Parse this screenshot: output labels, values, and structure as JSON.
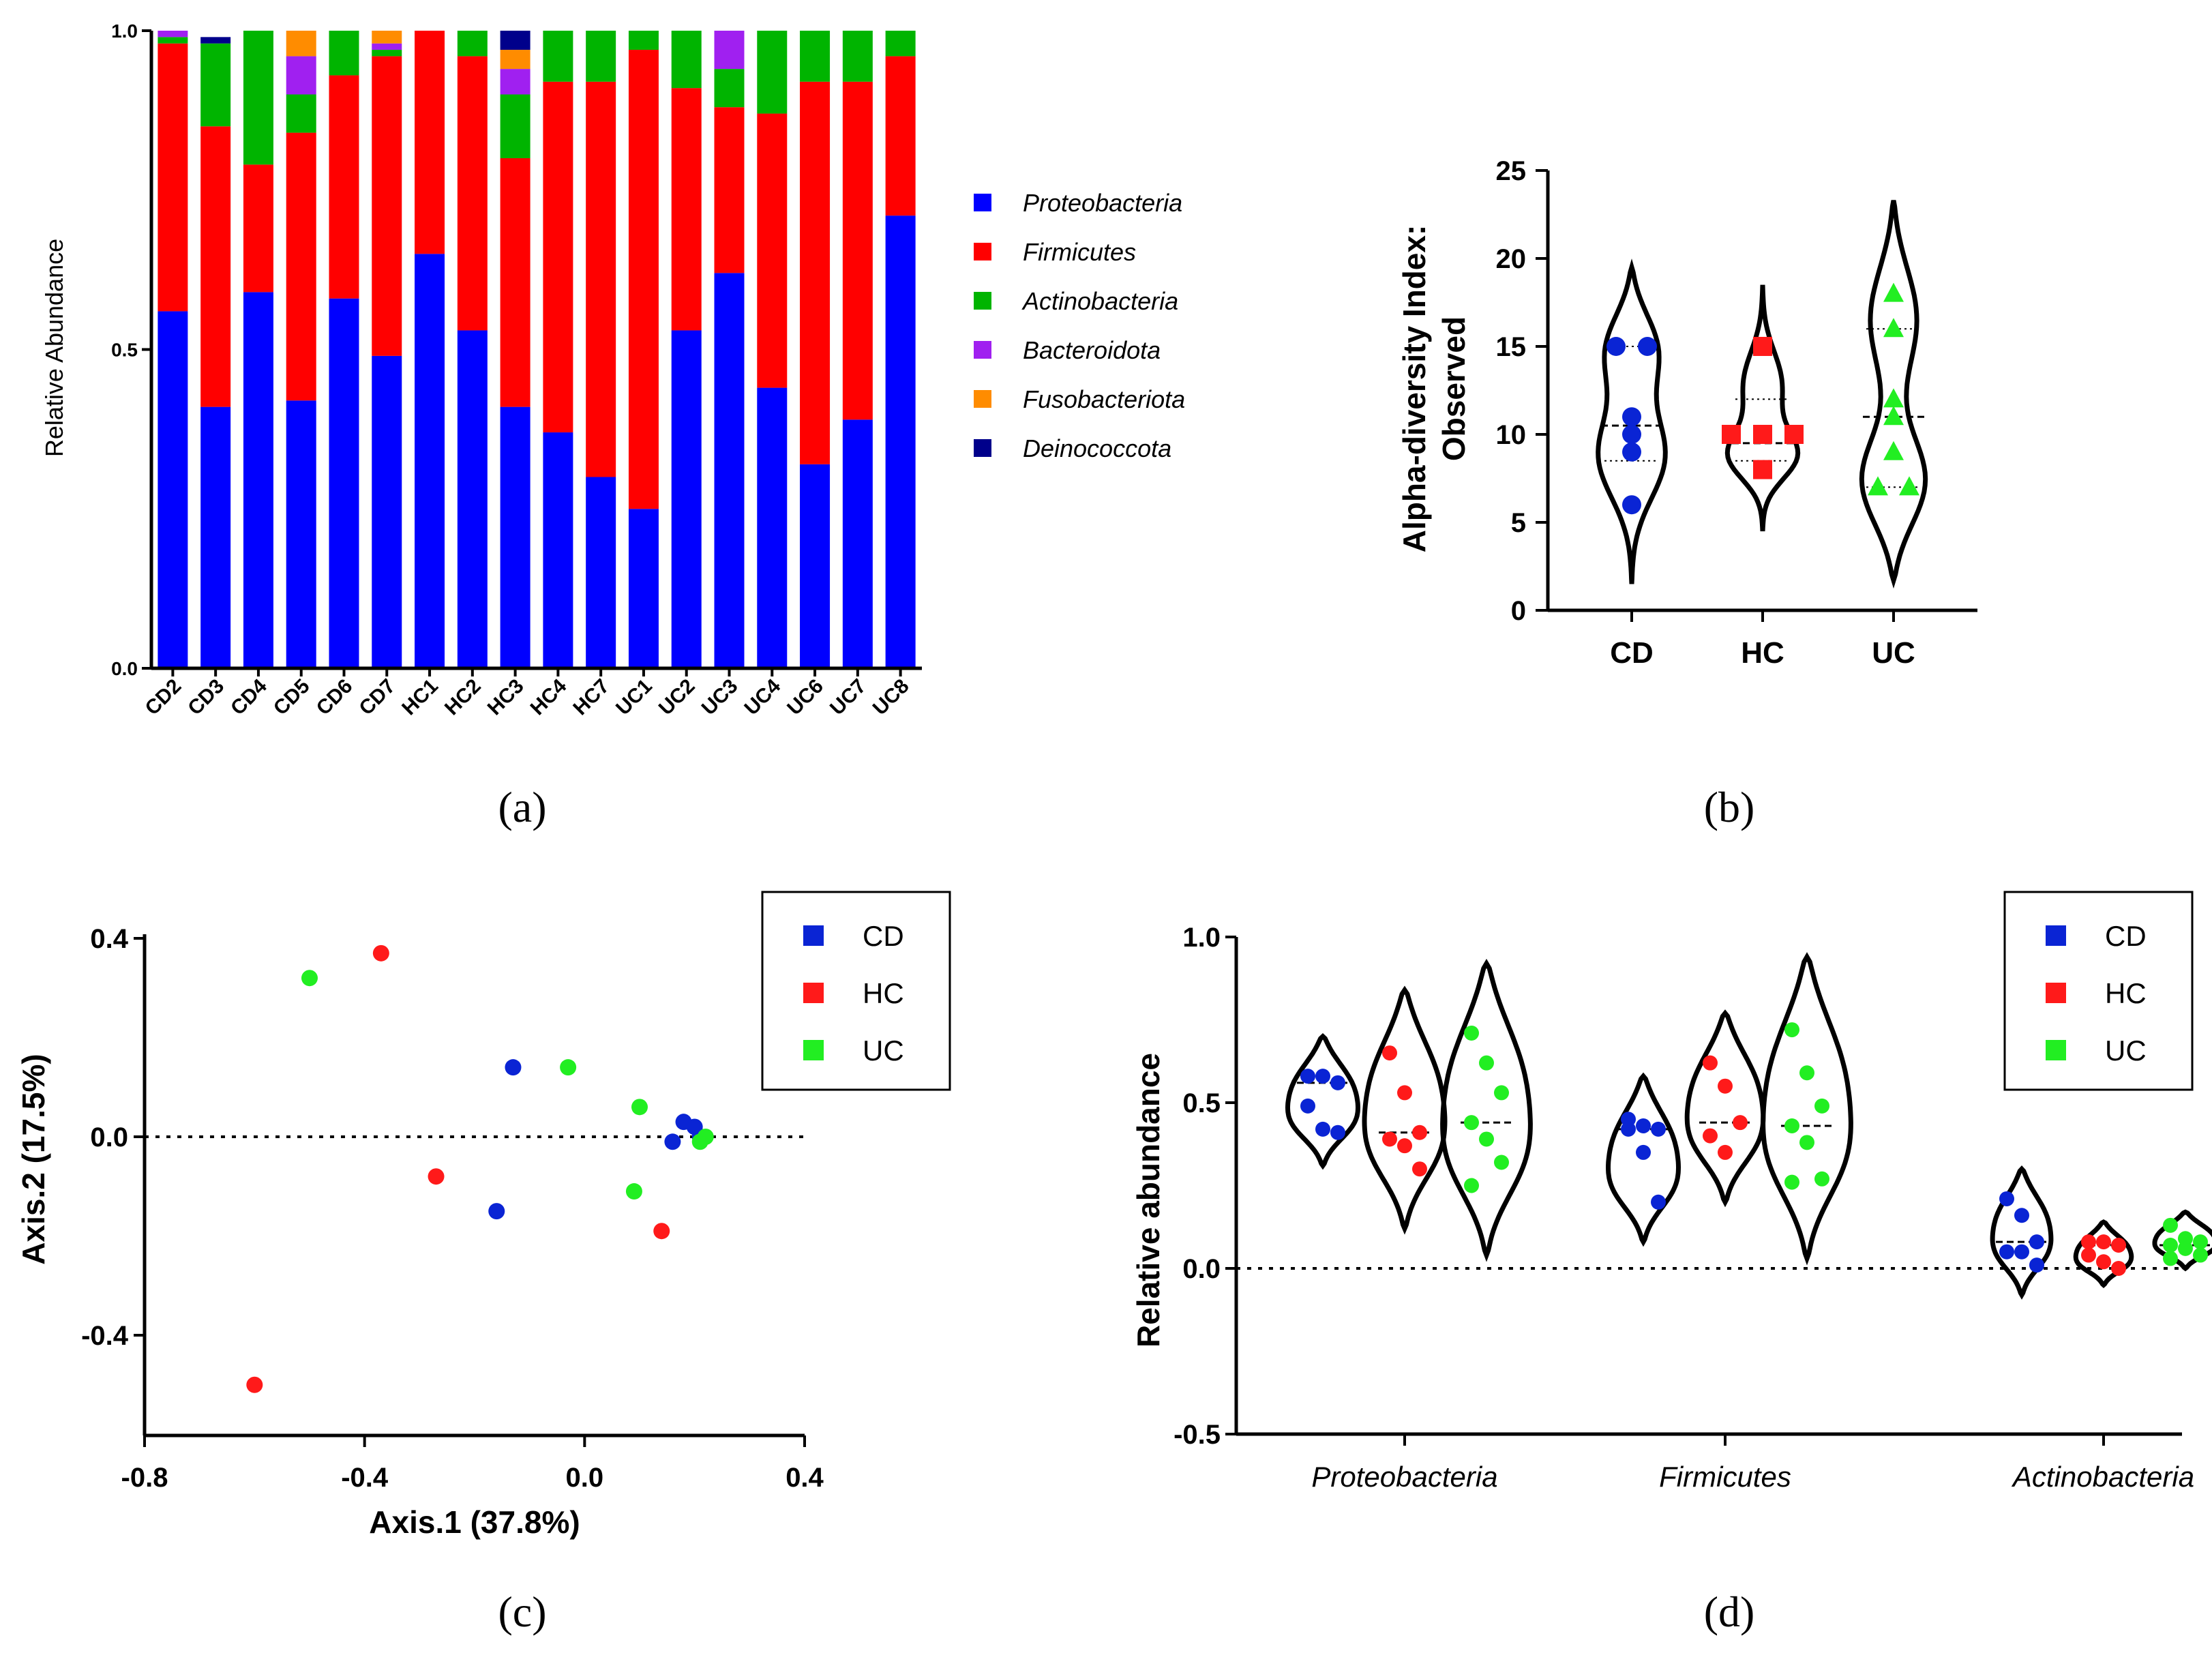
{
  "colors": {
    "Proteobacteria": "#0000ff",
    "Firmicutes": "#ff0000",
    "Actinobacteria": "#00b400",
    "Bacteroidota": "#a020f0",
    "Fusobacteriota": "#ff8c00",
    "Deinococcota": "#00008b",
    "CD": "#0a24d4",
    "HC": "#ff1a1a",
    "UC": "#22ee22"
  },
  "captions": {
    "a": "(a)",
    "b": "(b)",
    "c": "(c)",
    "d": "(d)"
  },
  "chart_data": [
    {
      "id": "a",
      "type": "bar",
      "stacked": true,
      "title": "",
      "ylabel": "Relative Abundance",
      "xlabel": "",
      "ylim": [
        0,
        1
      ],
      "yticks": [
        "0.0",
        "0.5",
        "1.0"
      ],
      "categories": [
        "CD2",
        "CD3",
        "CD4",
        "CD5",
        "CD6",
        "CD7",
        "HC1",
        "HC2",
        "HC3",
        "HC4",
        "HC7",
        "UC1",
        "UC2",
        "UC3",
        "UC4",
        "UC6",
        "UC7",
        "UC8"
      ],
      "legend_position": "right",
      "series": [
        {
          "name": "Proteobacteria",
          "values": [
            0.56,
            0.41,
            0.59,
            0.42,
            0.58,
            0.49,
            0.65,
            0.53,
            0.41,
            0.37,
            0.3,
            0.25,
            0.53,
            0.62,
            0.44,
            0.32,
            0.39,
            0.71
          ]
        },
        {
          "name": "Firmicutes",
          "values": [
            0.42,
            0.44,
            0.2,
            0.42,
            0.35,
            0.47,
            0.35,
            0.43,
            0.39,
            0.55,
            0.62,
            0.72,
            0.38,
            0.26,
            0.43,
            0.6,
            0.53,
            0.25
          ]
        },
        {
          "name": "Actinobacteria",
          "values": [
            0.01,
            0.13,
            0.21,
            0.06,
            0.07,
            0.01,
            0.0,
            0.04,
            0.1,
            0.08,
            0.08,
            0.03,
            0.09,
            0.06,
            0.13,
            0.08,
            0.08,
            0.04
          ]
        },
        {
          "name": "Bacteroidota",
          "values": [
            0.01,
            0.0,
            0.0,
            0.06,
            0.0,
            0.01,
            0.0,
            0.0,
            0.04,
            0.0,
            0.0,
            0.0,
            0.0,
            0.06,
            0.0,
            0.0,
            0.0,
            0.0
          ]
        },
        {
          "name": "Fusobacteriota",
          "values": [
            0.0,
            0.0,
            0.0,
            0.04,
            0.0,
            0.02,
            0.0,
            0.0,
            0.03,
            0.0,
            0.0,
            0.0,
            0.0,
            0.0,
            0.0,
            0.0,
            0.0,
            0.0
          ]
        },
        {
          "name": "Deinococcota",
          "values": [
            0.0,
            0.01,
            0.0,
            0.0,
            0.0,
            0.0,
            0.0,
            0.0,
            0.03,
            0.0,
            0.0,
            0.0,
            0.0,
            0.0,
            0.0,
            0.0,
            0.0,
            0.0
          ]
        }
      ]
    },
    {
      "id": "b",
      "type": "violin",
      "title": "",
      "ylabel": "Alpha-diversity Index:",
      "ylabel2": "Observed",
      "ylim": [
        0,
        25
      ],
      "yticks": [
        "0",
        "5",
        "10",
        "15",
        "20",
        "25"
      ],
      "categories": [
        "CD",
        "HC",
        "UC"
      ],
      "series": [
        {
          "name": "CD",
          "marker": "circle",
          "values": [
            15,
            15,
            11,
            10,
            9,
            6
          ],
          "median": 10.5,
          "q1": 8.5,
          "q3": 15,
          "range": [
            1.5,
            19.5
          ]
        },
        {
          "name": "HC",
          "marker": "square",
          "values": [
            15,
            10,
            10,
            10,
            8
          ],
          "median": 9.5,
          "q1": 8.5,
          "q3": 12,
          "range": [
            4.5,
            18.5
          ]
        },
        {
          "name": "UC",
          "marker": "triangle",
          "values": [
            18,
            16,
            12,
            11,
            9,
            7,
            7
          ],
          "median": 11,
          "q1": 7,
          "q3": 16,
          "range": [
            1.7,
            23.3
          ]
        }
      ]
    },
    {
      "id": "c",
      "type": "scatter",
      "title": "",
      "xlabel": "Axis.1 (37.8%)",
      "ylabel": "Axis.2 (17.5%)",
      "xlim": [
        -0.8,
        0.4
      ],
      "ylim": [
        -0.6,
        0.4
      ],
      "xticks": [
        "-0.8",
        "-0.4",
        "0.0",
        "0.4"
      ],
      "yticks": [
        "-0.4",
        "0.0",
        "0.4"
      ],
      "legend_position": "top-right",
      "series": [
        {
          "name": "CD",
          "points": [
            [
              -0.13,
              0.14
            ],
            [
              -0.16,
              -0.15
            ],
            [
              0.18,
              0.03
            ],
            [
              0.2,
              0.02
            ],
            [
              0.16,
              -0.01
            ],
            [
              0.21,
              0.0
            ]
          ]
        },
        {
          "name": "HC",
          "points": [
            [
              -0.37,
              0.37
            ],
            [
              -0.27,
              -0.08
            ],
            [
              0.14,
              -0.19
            ],
            [
              -0.6,
              -0.5
            ]
          ]
        },
        {
          "name": "UC",
          "points": [
            [
              -0.5,
              0.32
            ],
            [
              -0.03,
              0.14
            ],
            [
              0.1,
              0.06
            ],
            [
              0.09,
              -0.11
            ],
            [
              0.21,
              -0.01
            ],
            [
              0.22,
              0.0
            ]
          ]
        }
      ]
    },
    {
      "id": "d",
      "type": "violin",
      "title": "",
      "ylabel": "Relative abundance",
      "ylim": [
        -0.5,
        1.0
      ],
      "yticks": [
        "1.0",
        "0.5",
        "0.0",
        "-0.5"
      ],
      "categories": [
        "Proteobacteria",
        "Firmicutes",
        "Actinobacteria"
      ],
      "legend_position": "top-right",
      "series": [
        {
          "name": "CD",
          "values_by_category": [
            [
              0.58,
              0.58,
              0.56,
              0.49,
              0.42,
              0.41
            ],
            [
              0.45,
              0.43,
              0.42,
              0.42,
              0.35,
              0.2
            ],
            [
              0.21,
              0.16,
              0.08,
              0.05,
              0.05,
              0.01
            ]
          ]
        },
        {
          "name": "HC",
          "values_by_category": [
            [
              0.65,
              0.53,
              0.41,
              0.39,
              0.37,
              0.3
            ],
            [
              0.62,
              0.55,
              0.44,
              0.4,
              0.35
            ],
            [
              0.08,
              0.08,
              0.07,
              0.04,
              0.02,
              0.0
            ]
          ]
        },
        {
          "name": "UC",
          "values_by_category": [
            [
              0.71,
              0.62,
              0.53,
              0.44,
              0.39,
              0.32,
              0.25
            ],
            [
              0.72,
              0.59,
              0.49,
              0.43,
              0.38,
              0.27,
              0.26
            ],
            [
              0.13,
              0.09,
              0.08,
              0.07,
              0.06,
              0.04,
              0.03
            ]
          ]
        }
      ]
    }
  ]
}
